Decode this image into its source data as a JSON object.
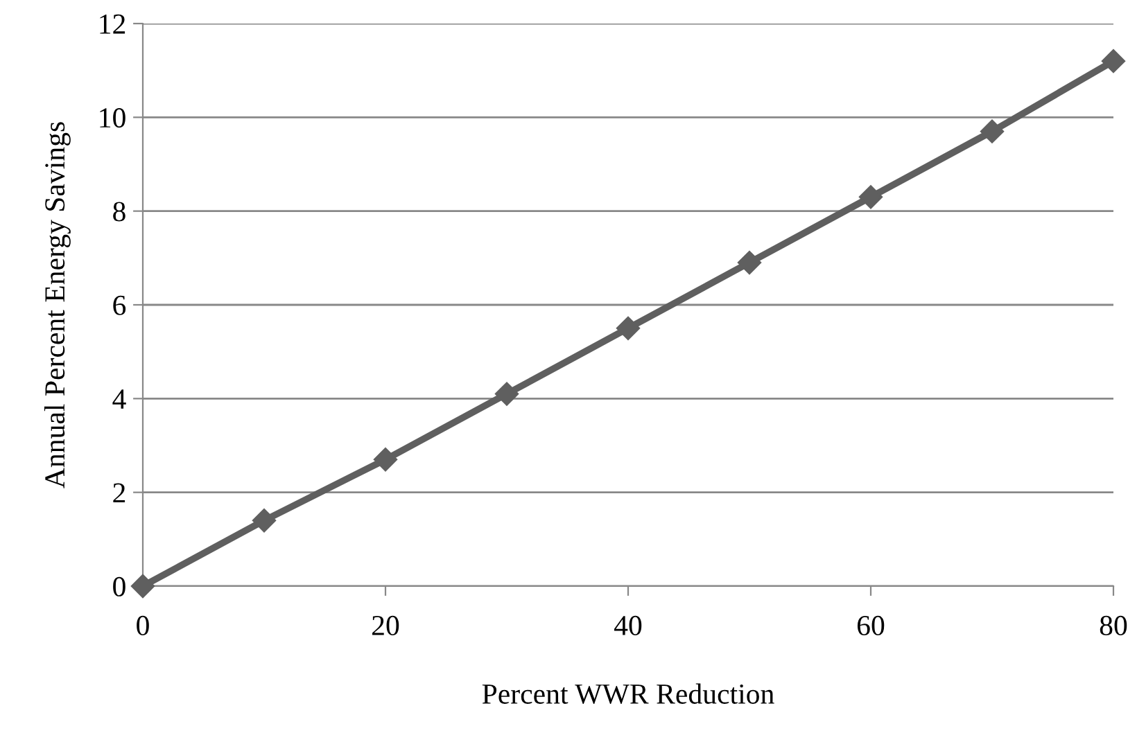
{
  "chart_data": {
    "type": "line",
    "xlabel": "Percent WWR Reduction",
    "ylabel": "Annual Percent Energy Savings",
    "x": [
      0,
      10,
      20,
      30,
      40,
      50,
      60,
      70,
      80
    ],
    "series": [
      {
        "color": "#5f5f5f",
        "values": [
          0,
          1.4,
          2.7,
          4.1,
          5.5,
          6.9,
          8.3,
          9.7,
          11.2
        ]
      }
    ],
    "xlim": [
      0,
      80
    ],
    "xticks": [
      0,
      20,
      40,
      60,
      80
    ],
    "ylim": [
      0,
      12
    ],
    "yticks": [
      0,
      2,
      4,
      6,
      8,
      10,
      12
    ],
    "grid": "y",
    "marker": "diamond",
    "line_style": "solid",
    "legend": false
  }
}
